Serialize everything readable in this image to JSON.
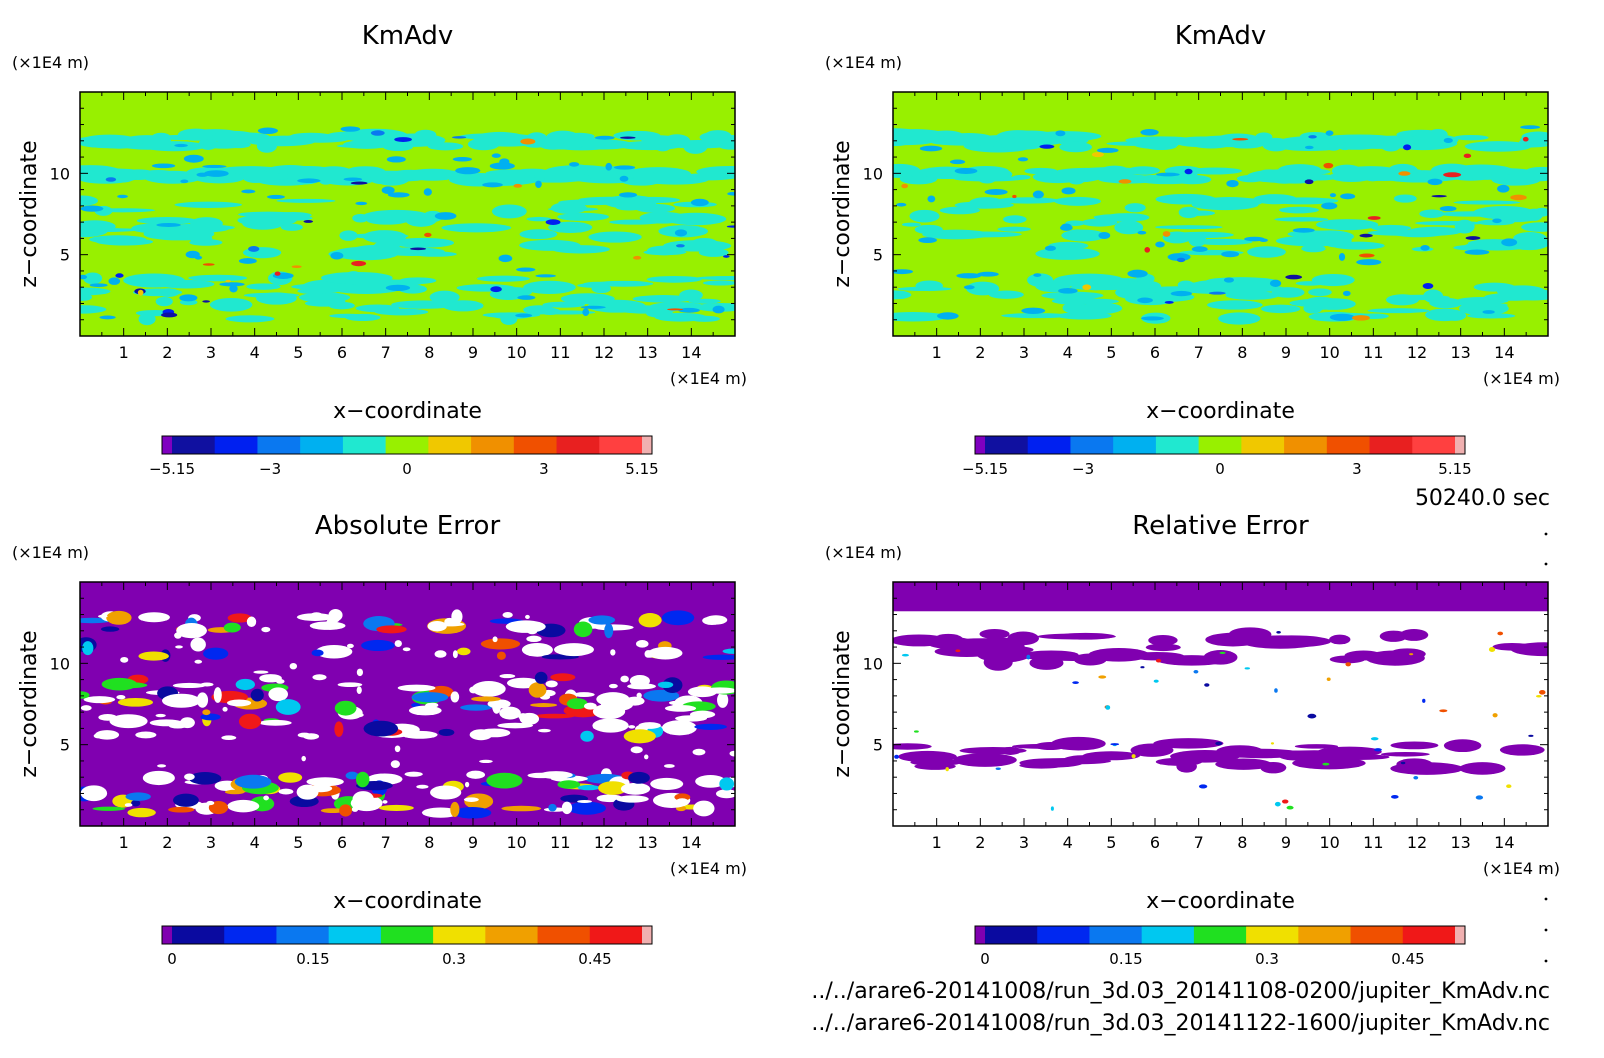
{
  "footer": {
    "time": "50240.0 sec",
    "file1": "../../arare6-20141008/run_3d.03_20141108-0200/jupiter_KmAdv.nc",
    "file2": "../../arare6-20141008/run_3d.03_20141122-1600/jupiter_KmAdv.nc"
  },
  "chart_data": [
    {
      "type": "heatmap",
      "title": "KmAdv",
      "xlabel": "x−coordinate",
      "ylabel": "z−coordinate",
      "x_unit": "(×1E4 m)",
      "y_unit": "(×1E4 m)",
      "xlim": [
        0,
        15
      ],
      "ylim": [
        0,
        15
      ],
      "x_ticks": [
        1,
        2,
        3,
        4,
        5,
        6,
        7,
        8,
        9,
        10,
        11,
        12,
        13,
        14
      ],
      "y_ticks": [
        5,
        10
      ],
      "colorbar": {
        "levels": [
          -5.15,
          -4.12,
          -3.09,
          -2.06,
          -1.03,
          0,
          1.03,
          2.06,
          3.09,
          4.12,
          5.15
        ],
        "tick_values": [
          -5.15,
          -3,
          0,
          3,
          5.15
        ],
        "tick_labels": [
          "−5.15",
          "−3",
          "0",
          "3",
          "5.15"
        ],
        "colors": [
          "#7f00c0",
          "#1010a0",
          "#0020f0",
          "#0a78f0",
          "#00b0f0",
          "#20e8d0",
          "#98f000",
          "#f0c800",
          "#f09000",
          "#f05000",
          "#e82020",
          "#ff4040",
          "#f0b0b0"
        ]
      },
      "field": "most of domain 0 to 1.03 (yellow-green); horizontal bands of -1.03 to 0 (cyan) at z 1-4, 5-9 and 11.5-12.5; scattered extremes up to +/-5"
    },
    {
      "type": "heatmap",
      "title": "KmAdv",
      "xlabel": "x−coordinate",
      "ylabel": "z−coordinate",
      "x_unit": "(×1E4 m)",
      "y_unit": "(×1E4 m)",
      "xlim": [
        0,
        15
      ],
      "ylim": [
        0,
        15
      ],
      "x_ticks": [
        1,
        2,
        3,
        4,
        5,
        6,
        7,
        8,
        9,
        10,
        11,
        12,
        13,
        14
      ],
      "y_ticks": [
        5,
        10
      ],
      "colorbar": {
        "levels": [
          -5.15,
          -4.12,
          -3.09,
          -2.06,
          -1.03,
          0,
          1.03,
          2.06,
          3.09,
          4.12,
          5.15
        ],
        "tick_values": [
          -5.15,
          -3,
          0,
          3,
          5.15
        ],
        "tick_labels": [
          "−5.15",
          "−3",
          "0",
          "3",
          "5.15"
        ],
        "colors": [
          "#7f00c0",
          "#1010a0",
          "#0020f0",
          "#0a78f0",
          "#00b0f0",
          "#20e8d0",
          "#98f000",
          "#f0c800",
          "#f09000",
          "#f05000",
          "#e82020",
          "#ff4040",
          "#f0b0b0"
        ]
      },
      "field": "similar banded structure to the first KmAdv panel"
    },
    {
      "type": "heatmap",
      "title": "Absolute Error",
      "xlabel": "x−coordinate",
      "ylabel": "z−coordinate",
      "x_unit": "(×1E4 m)",
      "y_unit": "(×1E4 m)",
      "xlim": [
        0,
        15
      ],
      "ylim": [
        0,
        15
      ],
      "x_ticks": [
        1,
        2,
        3,
        4,
        5,
        6,
        7,
        8,
        9,
        10,
        11,
        12,
        13,
        14
      ],
      "y_ticks": [
        5,
        10
      ],
      "colorbar": {
        "levels": [
          0,
          0.05,
          0.1,
          0.15,
          0.2,
          0.25,
          0.3,
          0.35,
          0.4,
          0.45,
          0.5
        ],
        "tick_values": [
          0,
          0.15,
          0.3,
          0.45
        ],
        "tick_labels": [
          "0",
          "0.15",
          "0.3",
          "0.45"
        ],
        "colors": [
          "#8000b0",
          "#0a0aa0",
          "#0028f0",
          "#0a78f0",
          "#00c8f0",
          "#20e020",
          "#f0e000",
          "#f0a000",
          "#f05000",
          "#f01818",
          "#f0b0b0"
        ]
      },
      "field": "mostly 0-0.05 (purple); bands with errors above 0.5 (white) at z 1-3, 5-9 and 12-13"
    },
    {
      "type": "heatmap",
      "title": "Relative Error",
      "xlabel": "x−coordinate",
      "ylabel": "z−coordinate",
      "x_unit": "(×1E4 m)",
      "y_unit": "(×1E4 m)",
      "xlim": [
        0,
        15
      ],
      "ylim": [
        0,
        15
      ],
      "x_ticks": [
        1,
        2,
        3,
        4,
        5,
        6,
        7,
        8,
        9,
        10,
        11,
        12,
        13,
        14
      ],
      "y_ticks": [
        5,
        10
      ],
      "colorbar": {
        "levels": [
          0,
          0.05,
          0.1,
          0.15,
          0.2,
          0.25,
          0.3,
          0.35,
          0.4,
          0.45,
          0.5
        ],
        "tick_values": [
          0,
          0.15,
          0.3,
          0.45
        ],
        "tick_labels": [
          "0",
          "0.15",
          "0.3",
          "0.45"
        ],
        "colors": [
          "#8000b0",
          "#0a0aa0",
          "#0028f0",
          "#0a78f0",
          "#00c8f0",
          "#20e020",
          "#f0e000",
          "#f0a000",
          "#f05000",
          "#f01818",
          "#f0b0b0"
        ]
      },
      "field": "top band z>13 at 0-0.05 (purple); most of the rest above 0.5 (white) with purple patches at z 10-12 and 3.5-5"
    }
  ]
}
